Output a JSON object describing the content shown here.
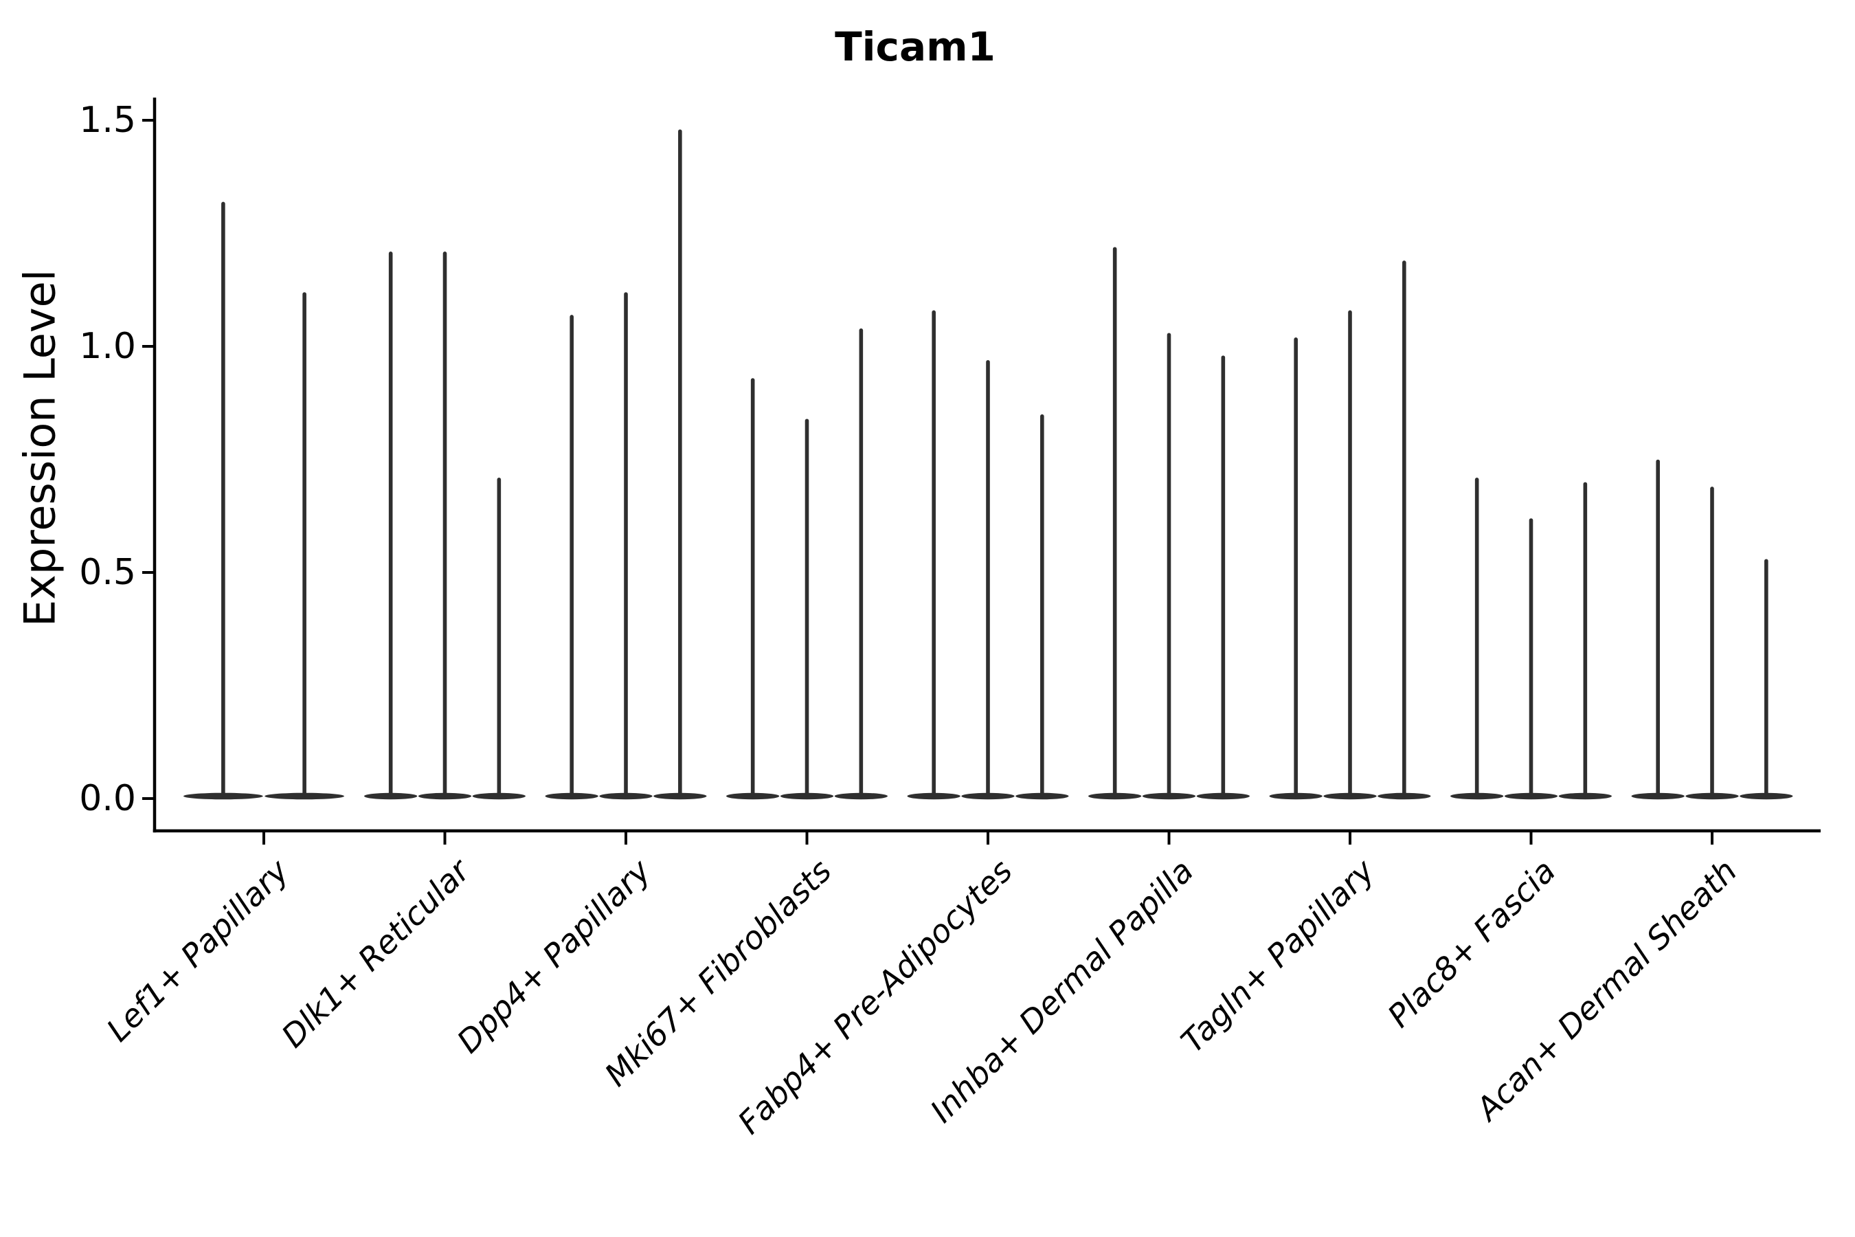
{
  "chart_data": {
    "type": "violin",
    "title": "Ticam1",
    "ylabel": "Expression Level",
    "xlabel": "",
    "yticks": [
      0.0,
      0.5,
      1.0,
      1.5
    ],
    "ytick_labels": [
      "0.0",
      "0.5",
      "1.0",
      "1.5"
    ],
    "ylim": [
      -0.07,
      1.55
    ],
    "grid": false,
    "legend": "none",
    "violin_style": "needle-thin violins, wide flat base at 0, no fill color",
    "categories": [
      "Lef1+ Papillary",
      "Dlk1+ Reticular",
      "Dpp4+ Papillary",
      "Mki67+ Fibroblasts",
      "Fabp4+ Pre-Adipocytes",
      "Inhba+ Dermal Papilla",
      "Tagln+ Papillary",
      "Plac8+ Fascia",
      "Acan+ Dermal Sheath"
    ],
    "groups": [
      {
        "category": "Lef1+ Papillary",
        "violin_max_values": [
          1.32,
          1.12
        ]
      },
      {
        "category": "Dlk1+ Reticular",
        "violin_max_values": [
          1.21,
          1.21,
          0.71
        ]
      },
      {
        "category": "Dpp4+ Papillary",
        "violin_max_values": [
          1.07,
          1.12,
          1.48
        ]
      },
      {
        "category": "Mki67+ Fibroblasts",
        "violin_max_values": [
          0.93,
          0.84,
          1.04
        ]
      },
      {
        "category": "Fabp4+ Pre-Adipocytes",
        "violin_max_values": [
          1.08,
          0.97,
          0.85
        ]
      },
      {
        "category": "Inhba+ Dermal Papilla",
        "violin_max_values": [
          1.22,
          1.03,
          0.98
        ]
      },
      {
        "category": "Tagln+ Papillary",
        "violin_max_values": [
          1.02,
          1.08,
          1.19
        ]
      },
      {
        "category": "Plac8+ Fascia",
        "violin_max_values": [
          0.71,
          0.62,
          0.7
        ]
      },
      {
        "category": "Acan+ Dermal Sheath",
        "violin_max_values": [
          0.75,
          0.69,
          0.53
        ]
      }
    ],
    "colors": {
      "violin": "#2f2f2f",
      "axis": "#000000",
      "text": "#000000",
      "background": "#ffffff"
    }
  }
}
